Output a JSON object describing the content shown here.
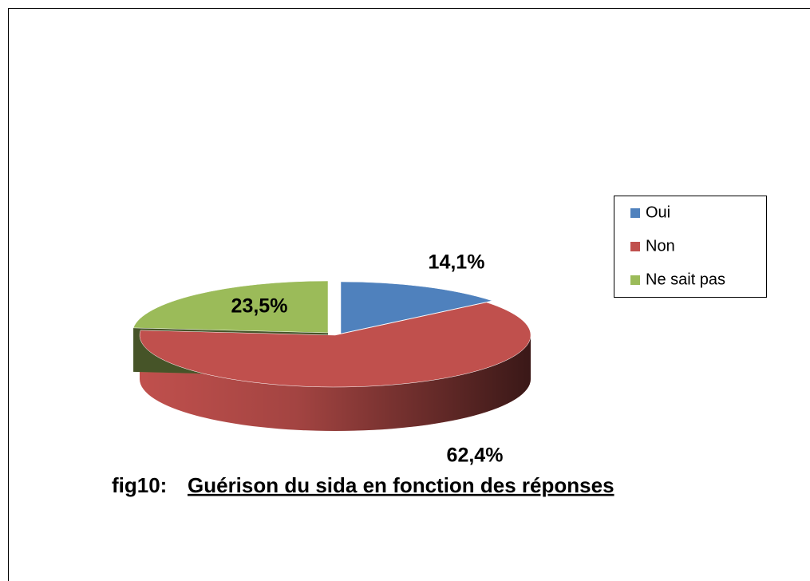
{
  "chart_data": {
    "type": "pie3d",
    "figure_label": "fig10:",
    "title": "Guérison du sida en fonction des réponses",
    "categories": [
      "Oui",
      "Non",
      "Ne sait pas"
    ],
    "values": [
      14.1,
      62.4,
      23.5
    ],
    "value_labels": [
      "14,1%",
      "62,4%",
      "23,5%"
    ],
    "colors": [
      "#4f81bd",
      "#c0504d",
      "#9bbb59"
    ],
    "legend": "right"
  }
}
